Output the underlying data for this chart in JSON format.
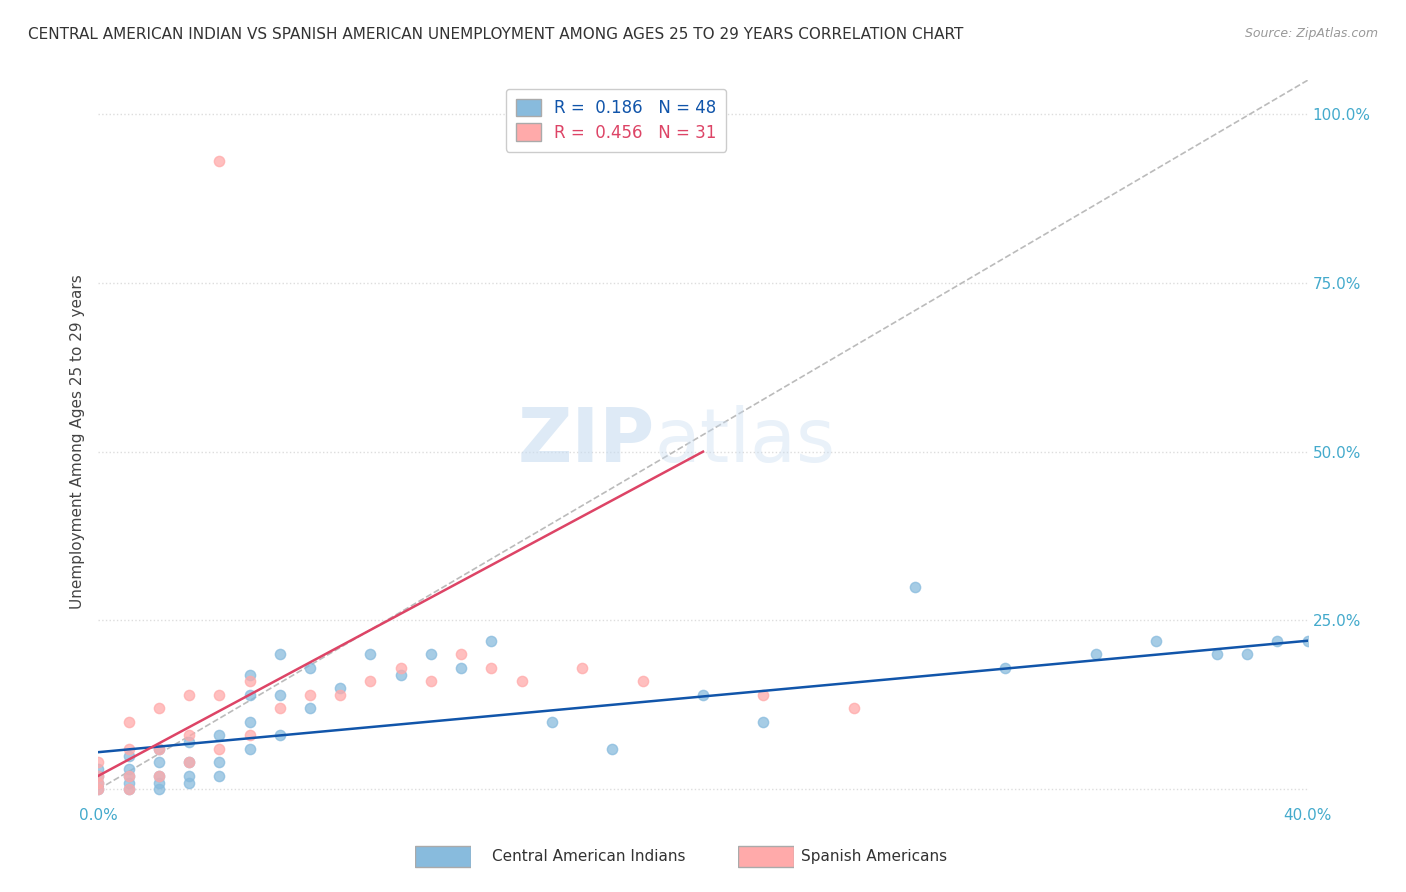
{
  "title": "CENTRAL AMERICAN INDIAN VS SPANISH AMERICAN UNEMPLOYMENT AMONG AGES 25 TO 29 YEARS CORRELATION CHART",
  "source": "Source: ZipAtlas.com",
  "ylabel": "Unemployment Among Ages 25 to 29 years",
  "xlim": [
    0.0,
    0.4
  ],
  "ylim": [
    -0.02,
    1.05
  ],
  "xtick_labels": [
    "0.0%",
    "40.0%"
  ],
  "ytick_labels": [
    "100.0%",
    "75.0%",
    "50.0%",
    "25.0%",
    "0.0%"
  ],
  "ytick_values": [
    1.0,
    0.75,
    0.5,
    0.25,
    0.0
  ],
  "ytick_display": [
    "100.0%",
    "75.0%",
    "50.0%",
    "25.0%"
  ],
  "ytick_display_vals": [
    1.0,
    0.75,
    0.5,
    0.25
  ],
  "xtick_values": [
    0.0,
    0.4
  ],
  "R_blue": 0.186,
  "N_blue": 48,
  "R_pink": 0.456,
  "N_pink": 31,
  "blue_color": "#88BBDD",
  "pink_color": "#FFAAAA",
  "blue_line_color": "#1155AA",
  "pink_line_color": "#DD4466",
  "diagonal_color": "#BBBBBB",
  "watermark_zip": "ZIP",
  "watermark_atlas": "atlas",
  "legend_label_blue": "Central American Indians",
  "legend_label_pink": "Spanish Americans",
  "blue_scatter_x": [
    0.0,
    0.0,
    0.0,
    0.0,
    0.01,
    0.01,
    0.01,
    0.01,
    0.01,
    0.02,
    0.02,
    0.02,
    0.02,
    0.02,
    0.03,
    0.03,
    0.03,
    0.03,
    0.04,
    0.04,
    0.04,
    0.05,
    0.05,
    0.05,
    0.05,
    0.06,
    0.06,
    0.06,
    0.07,
    0.07,
    0.08,
    0.09,
    0.1,
    0.11,
    0.12,
    0.13,
    0.15,
    0.17,
    0.2,
    0.22,
    0.27,
    0.3,
    0.33,
    0.35,
    0.37,
    0.38,
    0.39,
    0.4
  ],
  "blue_scatter_y": [
    0.0,
    0.01,
    0.02,
    0.03,
    0.0,
    0.01,
    0.02,
    0.03,
    0.05,
    0.0,
    0.01,
    0.02,
    0.04,
    0.06,
    0.01,
    0.02,
    0.04,
    0.07,
    0.02,
    0.04,
    0.08,
    0.06,
    0.1,
    0.14,
    0.17,
    0.08,
    0.14,
    0.2,
    0.12,
    0.18,
    0.15,
    0.2,
    0.17,
    0.2,
    0.18,
    0.22,
    0.1,
    0.06,
    0.14,
    0.1,
    0.3,
    0.18,
    0.2,
    0.22,
    0.2,
    0.2,
    0.22,
    0.22
  ],
  "pink_scatter_x": [
    0.0,
    0.0,
    0.0,
    0.0,
    0.01,
    0.01,
    0.01,
    0.01,
    0.02,
    0.02,
    0.02,
    0.03,
    0.03,
    0.03,
    0.04,
    0.04,
    0.05,
    0.05,
    0.06,
    0.07,
    0.08,
    0.09,
    0.1,
    0.11,
    0.12,
    0.13,
    0.14,
    0.16,
    0.18,
    0.22,
    0.25
  ],
  "pink_scatter_y": [
    0.0,
    0.01,
    0.02,
    0.04,
    0.0,
    0.02,
    0.06,
    0.1,
    0.02,
    0.06,
    0.12,
    0.04,
    0.08,
    0.14,
    0.06,
    0.14,
    0.08,
    0.16,
    0.12,
    0.14,
    0.14,
    0.16,
    0.18,
    0.16,
    0.2,
    0.18,
    0.16,
    0.18,
    0.16,
    0.14,
    0.12
  ],
  "pink_outlier_x": [
    0.04
  ],
  "pink_outlier_y": [
    0.93
  ],
  "blue_line_x": [
    0.0,
    0.4
  ],
  "blue_line_y": [
    0.055,
    0.22
  ],
  "pink_line_x": [
    0.0,
    0.2
  ],
  "pink_line_y": [
    0.02,
    0.5
  ],
  "background_color": "#FFFFFF",
  "grid_color": "#DDDDDD",
  "grid_linestyle": "dotted"
}
